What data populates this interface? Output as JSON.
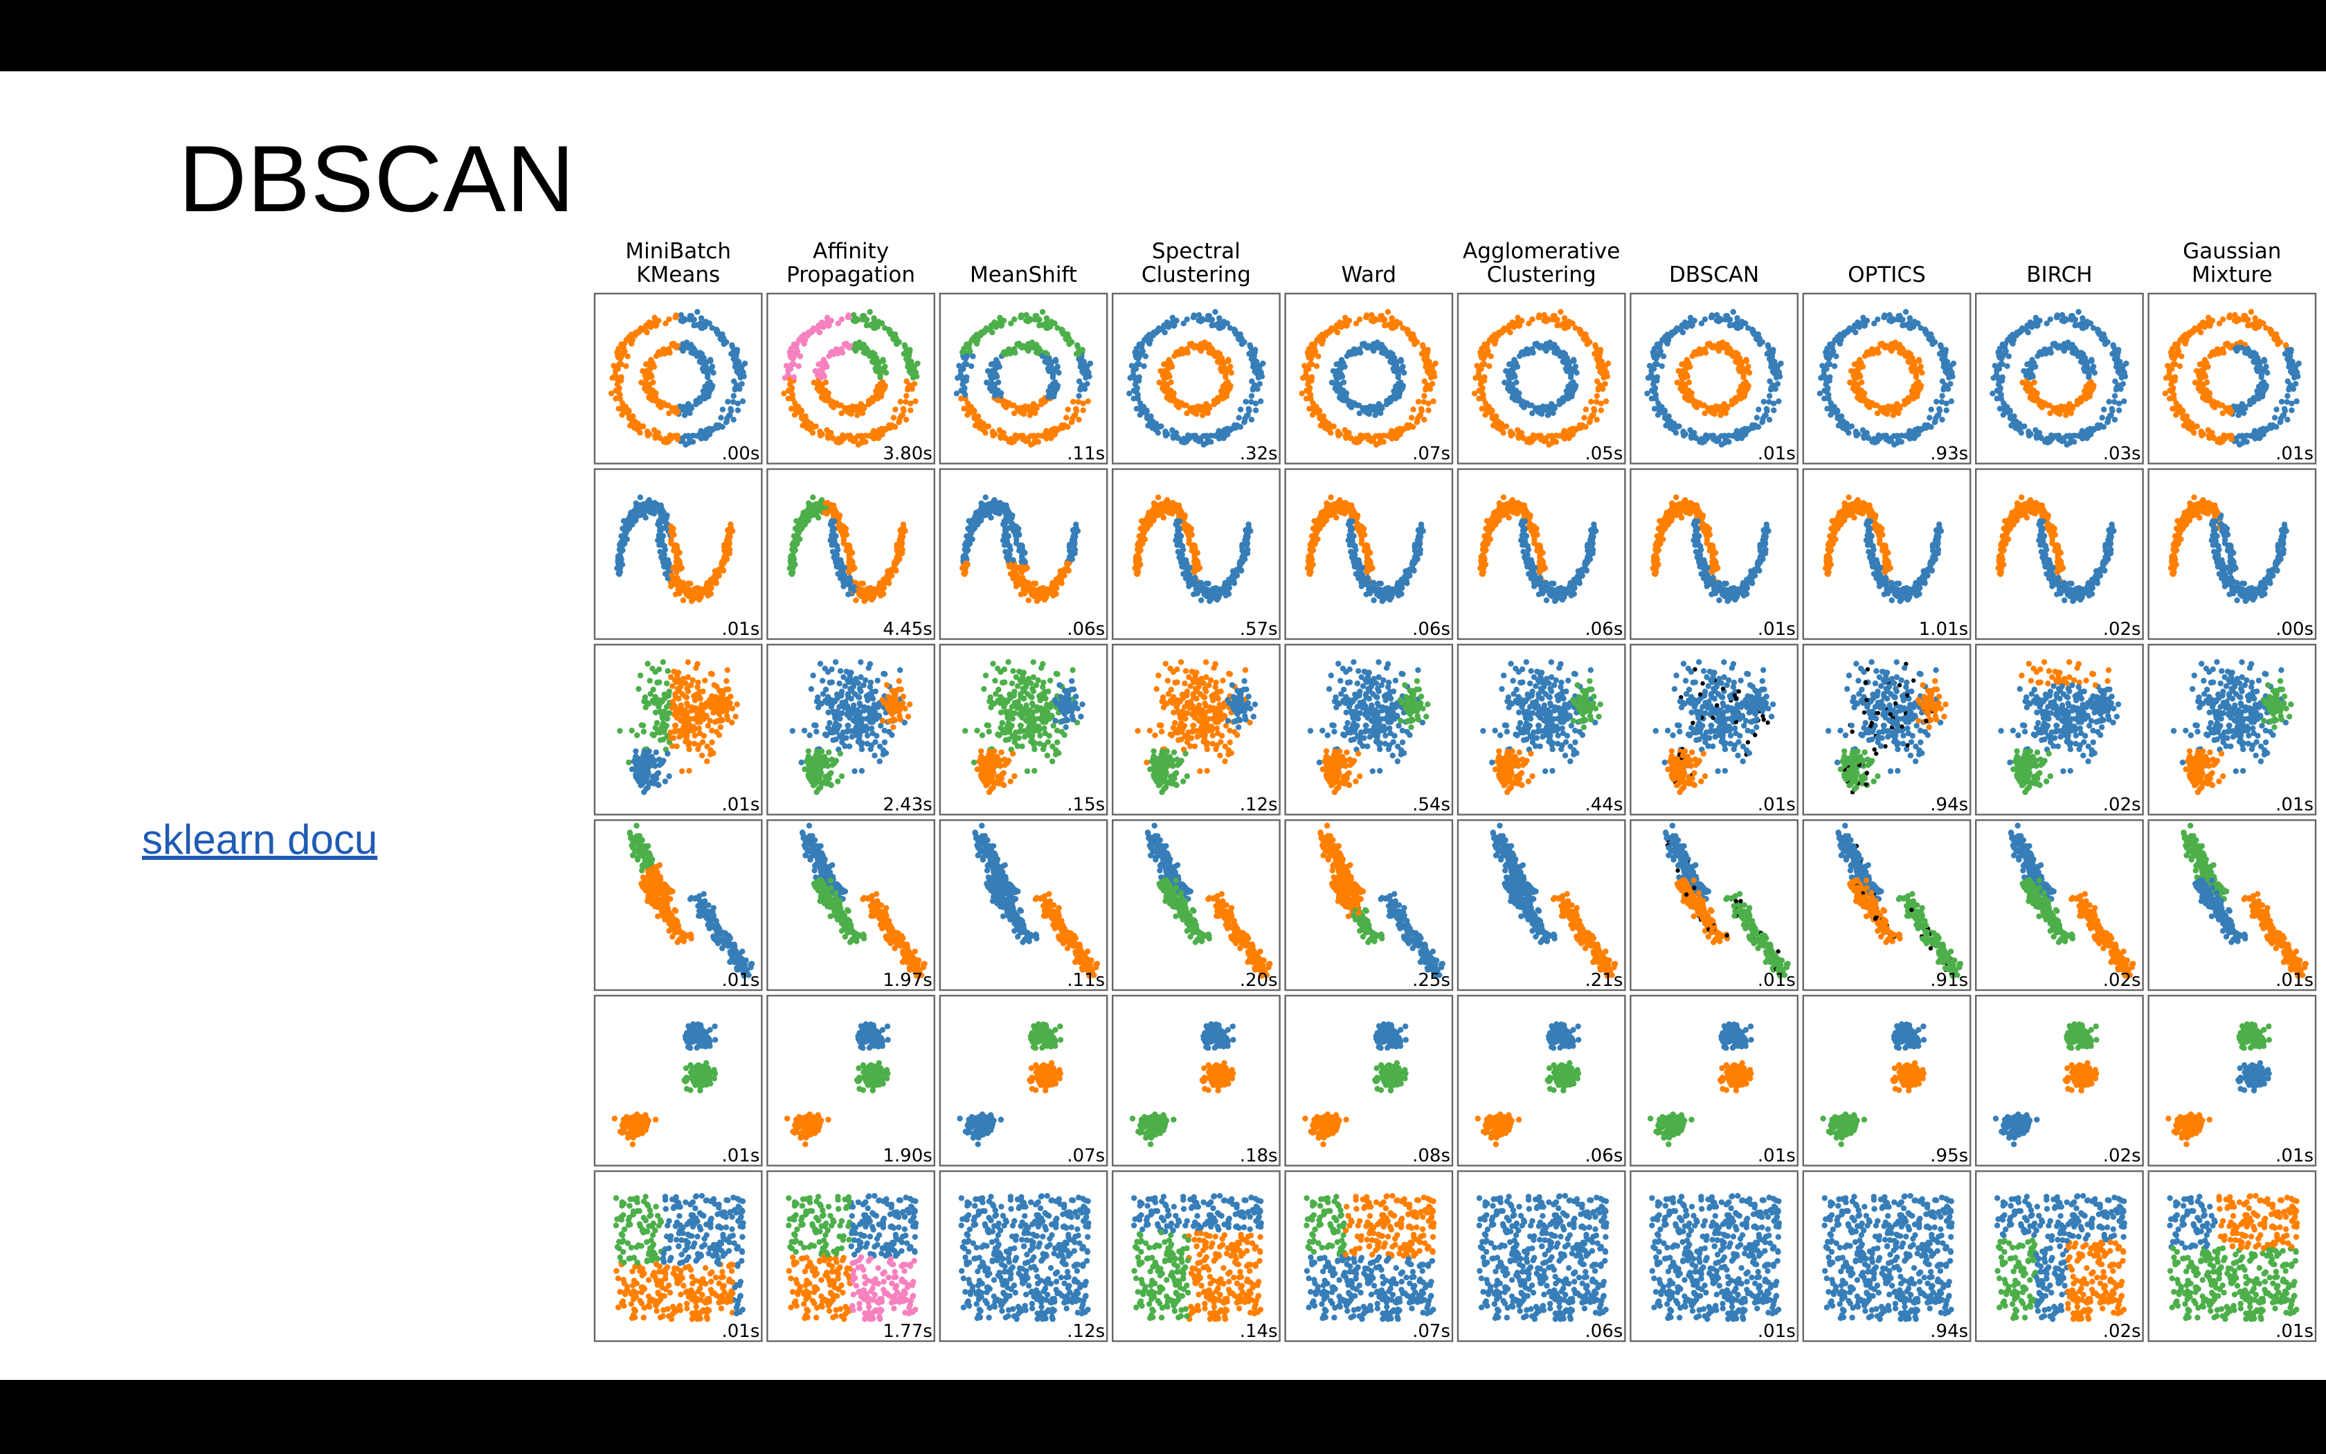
{
  "slide": {
    "title": "DBSCAN",
    "link_text": "sklearn docu"
  },
  "colors": {
    "blue": "#377eb8",
    "orange": "#ff7f00",
    "green": "#4daf4a",
    "pink": "#f781bf",
    "noise": "#000000"
  },
  "methods": [
    {
      "title": [
        "MiniBatch",
        "KMeans"
      ],
      "times": [
        ".00s",
        ".01s",
        ".01s",
        ".01s",
        ".01s",
        ".01s"
      ]
    },
    {
      "title": [
        "Affinity",
        "Propagation"
      ],
      "times": [
        "3.80s",
        "4.45s",
        "2.43s",
        "1.97s",
        "1.90s",
        "1.77s"
      ]
    },
    {
      "title": [
        "MeanShift"
      ],
      "times": [
        ".11s",
        ".06s",
        ".15s",
        ".11s",
        ".07s",
        ".12s"
      ]
    },
    {
      "title": [
        "Spectral",
        "Clustering"
      ],
      "times": [
        ".32s",
        ".57s",
        ".12s",
        ".20s",
        ".18s",
        ".14s"
      ]
    },
    {
      "title": [
        "Ward"
      ],
      "times": [
        ".07s",
        ".06s",
        ".54s",
        ".25s",
        ".08s",
        ".07s"
      ]
    },
    {
      "title": [
        "Agglomerative",
        "Clustering"
      ],
      "times": [
        ".05s",
        ".06s",
        ".44s",
        ".21s",
        ".06s",
        ".06s"
      ]
    },
    {
      "title": [
        "DBSCAN"
      ],
      "times": [
        ".01s",
        ".01s",
        ".01s",
        ".01s",
        ".01s",
        ".01s"
      ]
    },
    {
      "title": [
        "OPTICS"
      ],
      "times": [
        ".93s",
        "1.01s",
        ".94s",
        ".91s",
        ".95s",
        ".94s"
      ]
    },
    {
      "title": [
        "BIRCH"
      ],
      "times": [
        ".03s",
        ".02s",
        ".02s",
        ".02s",
        ".02s",
        ".02s"
      ]
    },
    {
      "title": [
        "Gaussian",
        "Mixture"
      ],
      "times": [
        ".01s",
        ".00s",
        ".01s",
        ".01s",
        ".01s",
        ".01s"
      ]
    }
  ],
  "datasets": [
    "noisy_circles",
    "noisy_moons",
    "varied",
    "aniso",
    "blobs",
    "no_structure"
  ]
}
